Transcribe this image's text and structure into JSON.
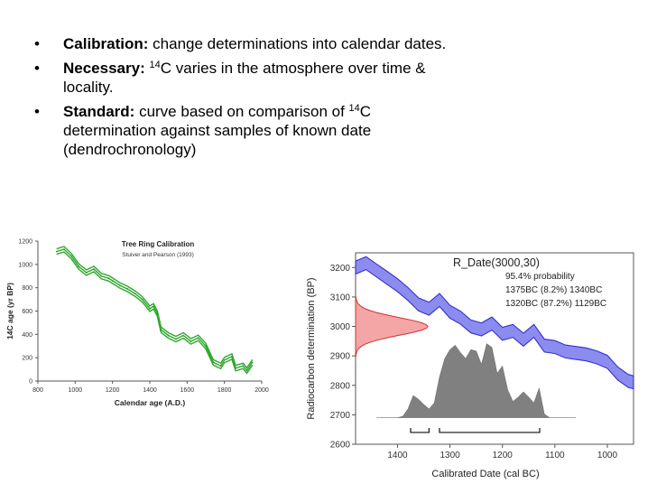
{
  "bullets": [
    {
      "label": "Calibration:",
      "text": " change determinations into calendar dates."
    },
    {
      "label": "Necessary:",
      "sup": "14",
      "text": "C varies in the atmosphere over time & locality."
    },
    {
      "label": "Standard:",
      "pre": " curve based on comparison of ",
      "sup": "14",
      "text": "C determination against samples of known date (dendrochronology)"
    }
  ],
  "chart_data": [
    {
      "type": "line",
      "title": "Tree Ring Calibration",
      "subtitle": "Stuiver and Pearson (1993)",
      "xlabel": "Calendar age (A.D.)",
      "ylabel": "14C age (yr BP)",
      "xlim": [
        800,
        2000
      ],
      "ylim": [
        0,
        1200
      ],
      "xticks": [
        800,
        1000,
        1200,
        1400,
        1600,
        1800,
        2000
      ],
      "yticks": [
        0,
        200,
        400,
        600,
        800,
        1000,
        1200
      ],
      "x": [
        900,
        940,
        980,
        1020,
        1060,
        1100,
        1140,
        1180,
        1200,
        1240,
        1280,
        1320,
        1360,
        1400,
        1420,
        1440,
        1460,
        1500,
        1540,
        1580,
        1620,
        1660,
        1700,
        1740,
        1780,
        1800,
        1840,
        1860,
        1900,
        1920,
        1950
      ],
      "y": [
        1110,
        1130,
        1070,
        980,
        930,
        960,
        900,
        880,
        860,
        820,
        790,
        750,
        700,
        620,
        640,
        580,
        440,
        390,
        360,
        390,
        340,
        370,
        300,
        160,
        130,
        180,
        210,
        110,
        130,
        90,
        160
      ]
    },
    {
      "type": "area",
      "title": "R_Date(3000,30)",
      "annotations": [
        "95.4% probability",
        "1375BC (8.2%) 1340BC",
        "1320BC (87.2%) 1129BC"
      ],
      "xlabel": "Calibrated Date (cal BC)",
      "ylabel": "Radiocarbon determination (BP)",
      "xlim": [
        1480,
        950
      ],
      "ylim": [
        2600,
        3250
      ],
      "xticks": [
        1400,
        1300,
        1200,
        1100,
        1000
      ],
      "yticks": [
        2600,
        2700,
        2800,
        2900,
        3000,
        3100,
        3200
      ],
      "calibration_curve": {
        "x": [
          1480,
          1460,
          1440,
          1420,
          1400,
          1380,
          1360,
          1340,
          1320,
          1300,
          1280,
          1260,
          1240,
          1220,
          1200,
          1180,
          1160,
          1140,
          1120,
          1100,
          1080,
          1060,
          1040,
          1020,
          1000,
          980,
          960,
          950
        ],
        "y": [
          3200,
          3215,
          3190,
          3165,
          3140,
          3110,
          3075,
          3060,
          3090,
          3050,
          3030,
          3000,
          2990,
          3010,
          2975,
          2985,
          2955,
          2985,
          2935,
          2930,
          2915,
          2910,
          2905,
          2895,
          2880,
          2840,
          2815,
          2810
        ]
      },
      "measurement": {
        "mean": 3000,
        "sd": 30
      },
      "posterior_density": {
        "x": [
          1400,
          1390,
          1380,
          1370,
          1360,
          1350,
          1340,
          1330,
          1320,
          1310,
          1300,
          1290,
          1280,
          1270,
          1260,
          1250,
          1240,
          1230,
          1220,
          1210,
          1200,
          1190,
          1180,
          1170,
          1160,
          1150,
          1140,
          1130,
          1120,
          1110
        ],
        "y": [
          0.0,
          0.02,
          0.12,
          0.3,
          0.25,
          0.18,
          0.12,
          0.2,
          0.55,
          0.8,
          0.92,
          0.98,
          0.88,
          0.8,
          0.92,
          0.9,
          0.72,
          1.0,
          0.95,
          0.6,
          0.7,
          0.38,
          0.22,
          0.28,
          0.35,
          0.28,
          0.2,
          0.4,
          0.05,
          0.0
        ]
      },
      "ranges_95": [
        [
          1375,
          1340
        ],
        [
          1320,
          1129
        ]
      ]
    }
  ]
}
